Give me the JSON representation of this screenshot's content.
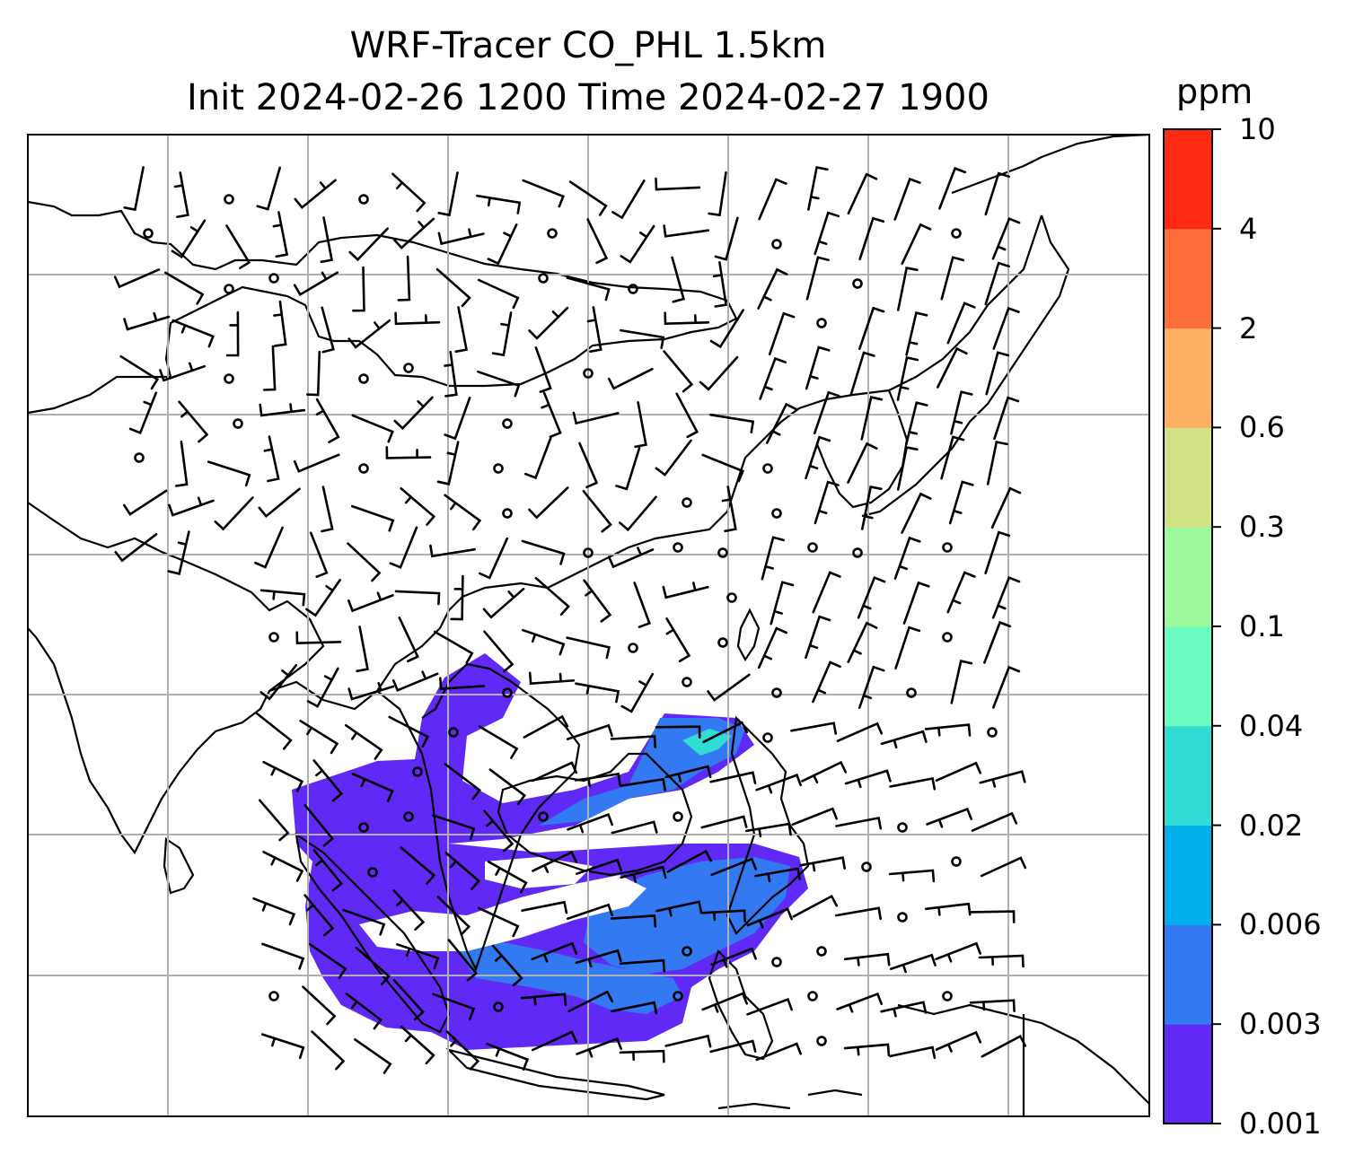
{
  "title": {
    "line1": "WRF-Tracer CO_PHL 1.5km",
    "line2": "Init 2024-02-26 1200 Time 2024-02-27 1900"
  },
  "colorbar": {
    "unit": "ppm",
    "levels": [
      "0.001",
      "0.003",
      "0.006",
      "0.02",
      "0.04",
      "0.1",
      "0.3",
      "0.6",
      "2",
      "4",
      "10"
    ],
    "colors": [
      "#6129f5",
      "#3279f2",
      "#00b0ea",
      "#30dcd4",
      "#6afcc0",
      "#9cf99c",
      "#d1e185",
      "#feaf62",
      "#ff6f3c",
      "#ff2a14"
    ]
  },
  "map": {
    "background": "#ffffff",
    "coastline_color": "#000000",
    "gridline_color": "#b0b0b0",
    "plume_colors": {
      "low": "#6129f5",
      "mid": "#3279f2",
      "high": "#30dcd4"
    },
    "wind_barbs": "black"
  }
}
